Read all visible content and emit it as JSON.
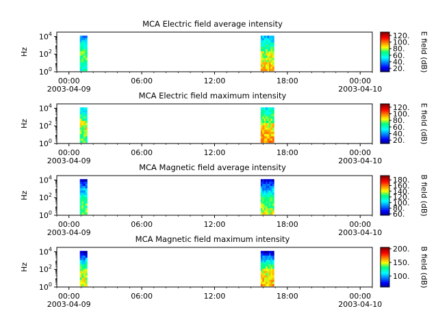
{
  "chart_data": [
    {
      "type": "heatmap",
      "title": "MCA  Electric field average intensity",
      "ylabel": "Hz",
      "ytick_exponents": [
        "0",
        "2",
        "4"
      ],
      "ylim_log10": [
        0,
        4.5
      ],
      "x_tick_labels": [
        "00:00",
        "06:00",
        "12:00",
        "18:00",
        "00:00"
      ],
      "x_date_labels": [
        "2003-04-09",
        "2003-04-10"
      ],
      "xlim_hours": [
        -1,
        25
      ],
      "colorbar_label": "E field (dB)",
      "colorbar_ticks": [
        "20.",
        "40.",
        "60.",
        "80.",
        "100.",
        "120."
      ],
      "colorbar_range": [
        10,
        130
      ],
      "data_segments": [
        {
          "start_hour": 0.9,
          "end_hour": 1.5,
          "freq_log10": [
            0.1,
            4.1
          ],
          "low_band_db": 60,
          "mid_band_db": 75,
          "high_band_db": 40
        },
        {
          "start_hour": 15.8,
          "end_hour": 16.9,
          "freq_log10": [
            0.1,
            4.1
          ],
          "low_band_db": 90,
          "mid_band_db": 80,
          "high_band_db": 45
        }
      ]
    },
    {
      "type": "heatmap",
      "title": "MCA  Electric field maximum intensity",
      "ylabel": "Hz",
      "ytick_exponents": [
        "0",
        "2",
        "4"
      ],
      "ylim_log10": [
        0,
        4.5
      ],
      "x_tick_labels": [
        "00:00",
        "06:00",
        "12:00",
        "18:00",
        "00:00"
      ],
      "x_date_labels": [
        "2003-04-09",
        "2003-04-10"
      ],
      "xlim_hours": [
        -1,
        25
      ],
      "colorbar_label": "E field (dB)",
      "colorbar_ticks": [
        "20.",
        "40.",
        "60.",
        "80.",
        "100.",
        "120."
      ],
      "colorbar_range": [
        10,
        130
      ],
      "data_segments": [
        {
          "start_hour": 0.9,
          "end_hour": 1.5,
          "freq_log10": [
            0.1,
            4.1
          ],
          "low_band_db": 70,
          "mid_band_db": 85,
          "high_band_db": 50
        },
        {
          "start_hour": 15.8,
          "end_hour": 16.9,
          "freq_log10": [
            0.1,
            4.1
          ],
          "low_band_db": 95,
          "mid_band_db": 85,
          "high_band_db": 55
        }
      ]
    },
    {
      "type": "heatmap",
      "title": "MCA  Magnetic field average intensity",
      "ylabel": "Hz",
      "ytick_exponents": [
        "0",
        "2",
        "4"
      ],
      "ylim_log10": [
        0,
        4.5
      ],
      "x_tick_labels": [
        "00:00",
        "06:00",
        "12:00",
        "18:00",
        "00:00"
      ],
      "x_date_labels": [
        "2003-04-09",
        "2003-04-10"
      ],
      "xlim_hours": [
        -1,
        25
      ],
      "colorbar_label": "B field (dB)",
      "colorbar_ticks": [
        "60.",
        "80.",
        "100.",
        "120.",
        "140.",
        "160.",
        "180."
      ],
      "colorbar_range": [
        55,
        195
      ],
      "data_segments": [
        {
          "start_hour": 0.9,
          "end_hour": 1.5,
          "freq_log10": [
            0.1,
            4.1
          ],
          "low_band_db": 130,
          "mid_band_db": 120,
          "high_band_db": 65
        },
        {
          "start_hour": 15.8,
          "end_hour": 16.9,
          "freq_log10": [
            0.1,
            4.1
          ],
          "low_band_db": 140,
          "mid_band_db": 120,
          "high_band_db": 65
        }
      ]
    },
    {
      "type": "heatmap",
      "title": "MCA  Magnetic field maximum intensity",
      "ylabel": "Hz",
      "ytick_exponents": [
        "0",
        "2",
        "4"
      ],
      "ylim_log10": [
        0,
        4.5
      ],
      "x_tick_labels": [
        "00:00",
        "06:00",
        "12:00",
        "18:00",
        "00:00"
      ],
      "x_date_labels": [
        "2003-04-09",
        "2003-04-10"
      ],
      "xlim_hours": [
        -1,
        25
      ],
      "colorbar_label": "B field (dB)",
      "colorbar_ticks": [
        "100.",
        "150.",
        "200."
      ],
      "colorbar_range": [
        60,
        205
      ],
      "data_segments": [
        {
          "start_hour": 0.9,
          "end_hour": 1.5,
          "freq_log10": [
            0.1,
            4.1
          ],
          "low_band_db": 150,
          "mid_band_db": 140,
          "high_band_db": 70
        },
        {
          "start_hour": 15.8,
          "end_hour": 16.9,
          "freq_log10": [
            0.1,
            4.1
          ],
          "low_band_db": 160,
          "mid_band_db": 145,
          "high_band_db": 70
        }
      ]
    }
  ]
}
